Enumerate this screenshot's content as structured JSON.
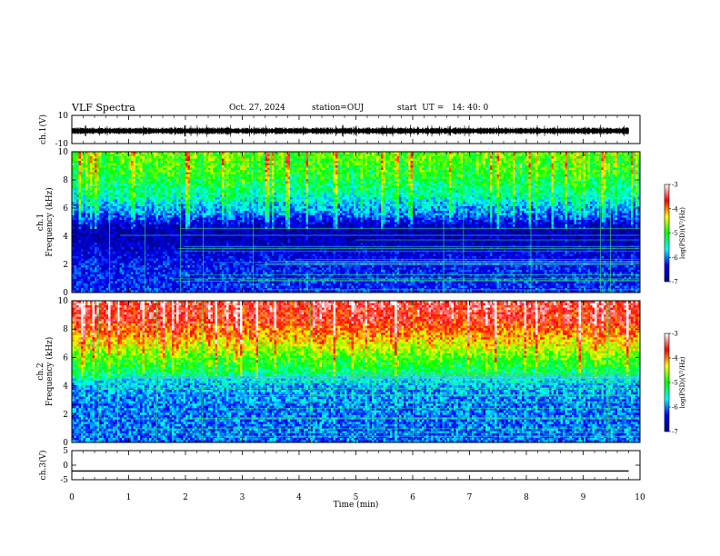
{
  "header": {
    "title": "VLF Spectra",
    "date": "Oct. 27, 2024",
    "station": "station=OUJ",
    "start_ut": "start  UT =   14: 40: 0"
  },
  "colors": {
    "colormap": [
      "#000080",
      "#0000ff",
      "#00ffff",
      "#00ff00",
      "#ffff00",
      "#ff0000",
      "#ffffff"
    ],
    "trace": "#000000"
  },
  "chart_data": [
    {
      "type": "line",
      "title": "",
      "ylabel": "ch.1(V)",
      "ylim": [
        -10,
        10
      ],
      "yticks": [
        "10",
        "-10"
      ],
      "description_series": "waveform",
      "x": [
        0,
        1,
        2,
        3,
        4,
        5,
        6,
        7,
        8,
        9,
        9.8
      ],
      "y": [
        -1,
        -1,
        -1,
        -1,
        -1,
        -1,
        -1,
        -1,
        -1,
        -1,
        -1
      ]
    },
    {
      "type": "heatmap",
      "ylabel_line1": "ch.1",
      "ylabel_line2": "Frequency (kHz)",
      "ylim": [
        0,
        10
      ],
      "yticks": [
        "0",
        "2",
        "4",
        "6",
        "8",
        "10"
      ],
      "xlim": [
        0,
        10
      ],
      "colorbar": {
        "label": "log(PSD)(V²/Hz)",
        "range": [
          -7,
          -3
        ],
        "ticks": [
          "-3",
          "-4",
          "-5",
          "-6",
          "-7"
        ]
      },
      "level_profile": [
        {
          "f": 0,
          "log_psd": -6.3
        },
        {
          "f": 2,
          "log_psd": -6.4
        },
        {
          "f": 4,
          "log_psd": -6.8
        },
        {
          "f": 4.8,
          "log_psd": -6.8
        },
        {
          "f": 5.5,
          "log_psd": -6.2
        },
        {
          "f": 7,
          "log_psd": -5.6
        },
        {
          "f": 8.5,
          "log_psd": -5.2
        },
        {
          "f": 10,
          "log_psd": -5.0
        }
      ]
    },
    {
      "type": "heatmap",
      "ylabel_line1": "ch.2",
      "ylabel_line2": "Frequency (kHz)",
      "ylim": [
        0,
        10
      ],
      "yticks": [
        "0",
        "2",
        "4",
        "6",
        "8",
        "10"
      ],
      "xlim": [
        0,
        10
      ],
      "colorbar": {
        "label": "log(PSD)(V²/Hz)",
        "range": [
          -7,
          -3
        ],
        "ticks": [
          "-3",
          "-4",
          "-5",
          "-6",
          "-7"
        ]
      },
      "level_profile": [
        {
          "f": 0,
          "log_psd": -6.1
        },
        {
          "f": 2,
          "log_psd": -6.1
        },
        {
          "f": 4,
          "log_psd": -5.9
        },
        {
          "f": 5,
          "log_psd": -5.4
        },
        {
          "f": 6,
          "log_psd": -5.0
        },
        {
          "f": 7,
          "log_psd": -4.5
        },
        {
          "f": 8.5,
          "log_psd": -3.9
        },
        {
          "f": 10,
          "log_psd": -3.7
        }
      ]
    },
    {
      "type": "line",
      "ylabel": "ch.3(V)",
      "ylim": [
        -5,
        5
      ],
      "yticks": [
        "5",
        "0",
        "-5"
      ],
      "x": [
        0,
        9.8
      ],
      "y": [
        -2,
        -2
      ]
    }
  ],
  "xaxis": {
    "label": "Time  (min)",
    "range": [
      0,
      10
    ],
    "ticks": [
      "0",
      "1",
      "2",
      "3",
      "4",
      "5",
      "6",
      "7",
      "8",
      "9",
      "10"
    ]
  }
}
